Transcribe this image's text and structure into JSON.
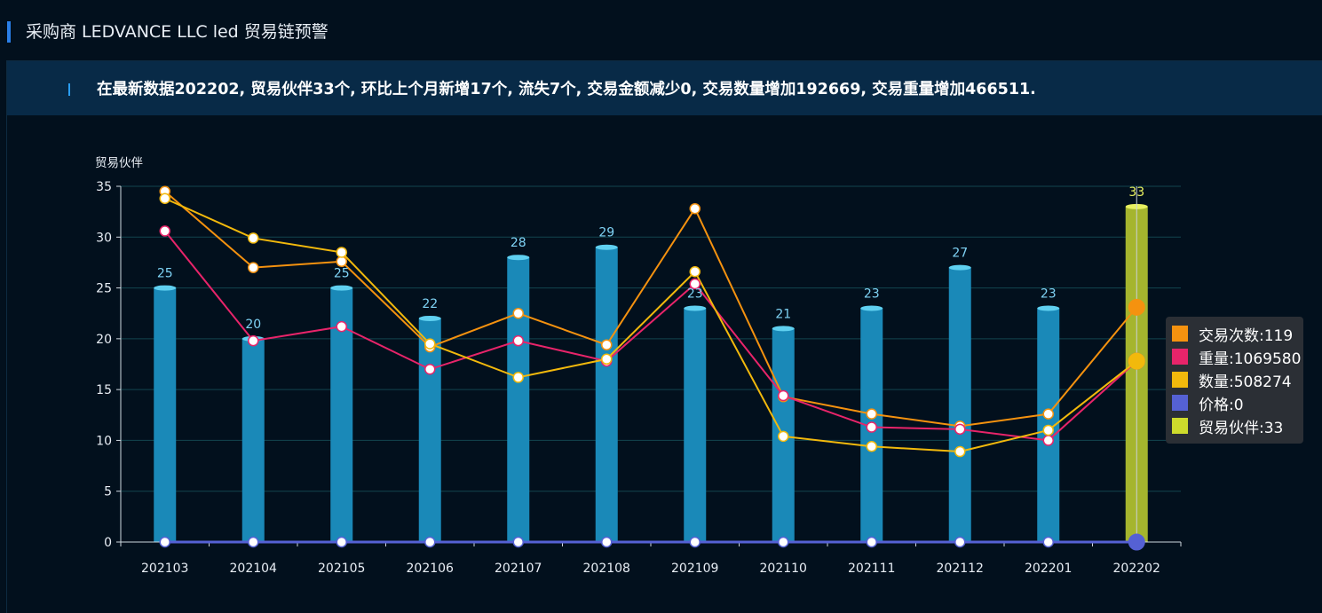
{
  "header": {
    "title": "采购商 LEDVANCE LLC led 贸易链预警",
    "accent_color": "#2a7fe8"
  },
  "banner": {
    "text": "在最新数据202202, 贸易伙伴33个, 环比上个月新增17个, 流失7个, 交易金额减少0, 交易数量增加192669, 交易重量增加466511.",
    "accent_color": "#2a9df0"
  },
  "legend": {
    "items": [
      {
        "label": "交易次数:119",
        "color": "#f5920f"
      },
      {
        "label": "重量:1069580",
        "color": "#e8246a"
      },
      {
        "label": "数量:508274",
        "color": "#f2b90c"
      },
      {
        "label": "价格:0",
        "color": "#5561d4"
      },
      {
        "label": "贸易伙伴:33",
        "color": "#cddb2c"
      }
    ]
  },
  "chart_data": {
    "type": "bar",
    "ylabel": "贸易伙伴",
    "ylim": [
      0,
      35
    ],
    "yticks": [
      0,
      5,
      10,
      15,
      20,
      25,
      30,
      35
    ],
    "grid": true,
    "legend_position": "right",
    "categories": [
      "202103",
      "202104",
      "202105",
      "202106",
      "202107",
      "202108",
      "202109",
      "202110",
      "202111",
      "202112",
      "202201",
      "202202"
    ],
    "bar_color": "#1a89b8",
    "bar_cap_color": "#5fd0f0",
    "highlight_bar_color": "#a5b52e",
    "highlight_cap_color": "#e8f060",
    "highlight_index": 11,
    "series": [
      {
        "name": "贸易伙伴",
        "kind": "bar",
        "color": "#1a89b8",
        "values": [
          25,
          20,
          25,
          22,
          28,
          29,
          23,
          21,
          23,
          27,
          23,
          33
        ]
      },
      {
        "name": "交易次数",
        "kind": "line",
        "color": "#f5920f",
        "values": [
          34.5,
          27.0,
          27.6,
          19.2,
          22.5,
          19.4,
          32.8,
          14.3,
          12.6,
          11.4,
          12.6,
          23.1
        ]
      },
      {
        "name": "重量",
        "kind": "line",
        "color": "#e8246a",
        "values": [
          30.6,
          19.8,
          21.2,
          17.0,
          19.8,
          17.8,
          25.4,
          14.4,
          11.3,
          11.1,
          10.0,
          17.8
        ]
      },
      {
        "name": "数量",
        "kind": "line",
        "color": "#f2b90c",
        "values": [
          33.8,
          29.9,
          28.5,
          19.5,
          16.2,
          18.0,
          26.6,
          10.4,
          9.4,
          8.9,
          11.0,
          17.8
        ]
      },
      {
        "name": "价格",
        "kind": "line",
        "color": "#5561d4",
        "values": [
          0,
          0,
          0,
          0,
          0,
          0,
          0,
          0,
          0,
          0,
          0,
          0
        ]
      }
    ]
  }
}
